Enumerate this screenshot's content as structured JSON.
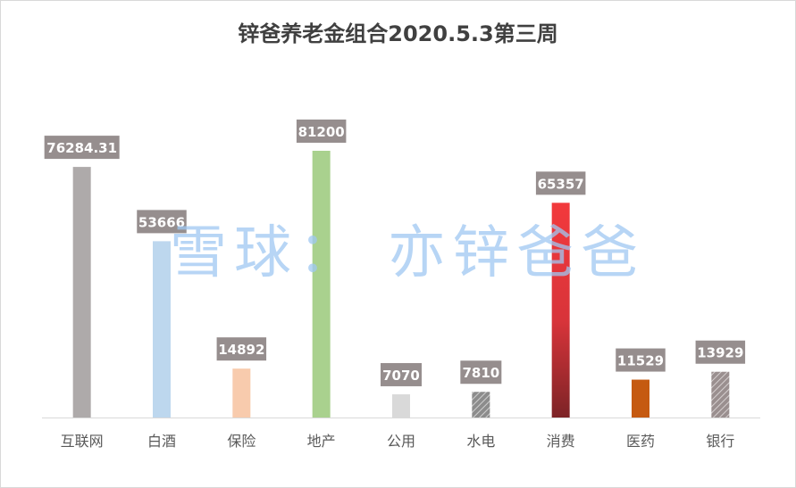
{
  "chart_data": {
    "type": "bar",
    "title": "锌爸养老金组合2020.5.3第三周",
    "xlabel": "",
    "ylabel": "",
    "ylim": [
      0,
      90000
    ],
    "grid": false,
    "legend": "none",
    "categories": [
      "互联网",
      "白酒",
      "保险",
      "地产",
      "公用",
      "水电",
      "消费",
      "医药",
      "银行"
    ],
    "values": [
      76284.31,
      53666,
      14892,
      81200,
      7070,
      7810,
      65357,
      11529,
      13929
    ],
    "value_labels": [
      "76284.31",
      "53666",
      "14892",
      "81200",
      "7070",
      "7810",
      "65357",
      "11529",
      "13929"
    ],
    "colors": [
      "#aeaaaa",
      "#bdd7ee",
      "#f8cbad",
      "#a9d18e",
      "#d9d9d9",
      "#9a9a9a",
      "#e8373a",
      "#c55a11",
      "#a89d9d"
    ],
    "patterned": [
      false,
      false,
      false,
      false,
      false,
      true,
      false,
      false,
      true
    ],
    "gradient": [
      false,
      false,
      false,
      false,
      false,
      false,
      true,
      false,
      false
    ],
    "label_box_color": "#968e8e"
  },
  "watermark": "雪球： 亦锌爸爸"
}
